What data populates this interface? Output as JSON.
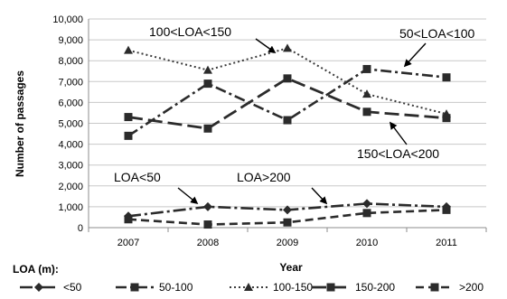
{
  "chart_data": {
    "type": "line",
    "title": "",
    "xlabel": "Year",
    "ylabel": "Number of passages",
    "ylim": [
      0,
      10000
    ],
    "yticks": [
      "0",
      "1,000",
      "2,000",
      "3,000",
      "4,000",
      "5,000",
      "6,000",
      "7,000",
      "8,000",
      "9,000",
      "10,000"
    ],
    "ytick_values": [
      0,
      1000,
      2000,
      3000,
      4000,
      5000,
      6000,
      7000,
      8000,
      9000,
      10000
    ],
    "categories": [
      "2007",
      "2008",
      "2009",
      "2010",
      "2011"
    ],
    "grid": true,
    "legend_position": "bottom",
    "legend_title": "LOA (m):",
    "series": [
      {
        "name": "<50",
        "values": [
          550,
          1000,
          850,
          1150,
          1000
        ],
        "marker": "diamond",
        "dash": "longdash-dot"
      },
      {
        "name": "50-100",
        "values": [
          4400,
          6900,
          5150,
          7600,
          7200
        ],
        "marker": "square",
        "dash": "dashdot"
      },
      {
        "name": "100-150",
        "values": [
          8500,
          7550,
          8600,
          6400,
          5450
        ],
        "marker": "triangle",
        "dash": "dotted"
      },
      {
        "name": "150-200",
        "values": [
          5300,
          4750,
          7150,
          5550,
          5250
        ],
        "marker": "square",
        "dash": "longdash"
      },
      {
        "name": ">200",
        "values": [
          400,
          150,
          250,
          700,
          850
        ],
        "marker": "square",
        "dash": "dashed"
      }
    ],
    "annotations": [
      {
        "text": "100<LOA<150"
      },
      {
        "text": "50<LOA<100"
      },
      {
        "text": "150<LOA<200"
      },
      {
        "text": "LOA<50"
      },
      {
        "text": "LOA>200"
      }
    ]
  }
}
